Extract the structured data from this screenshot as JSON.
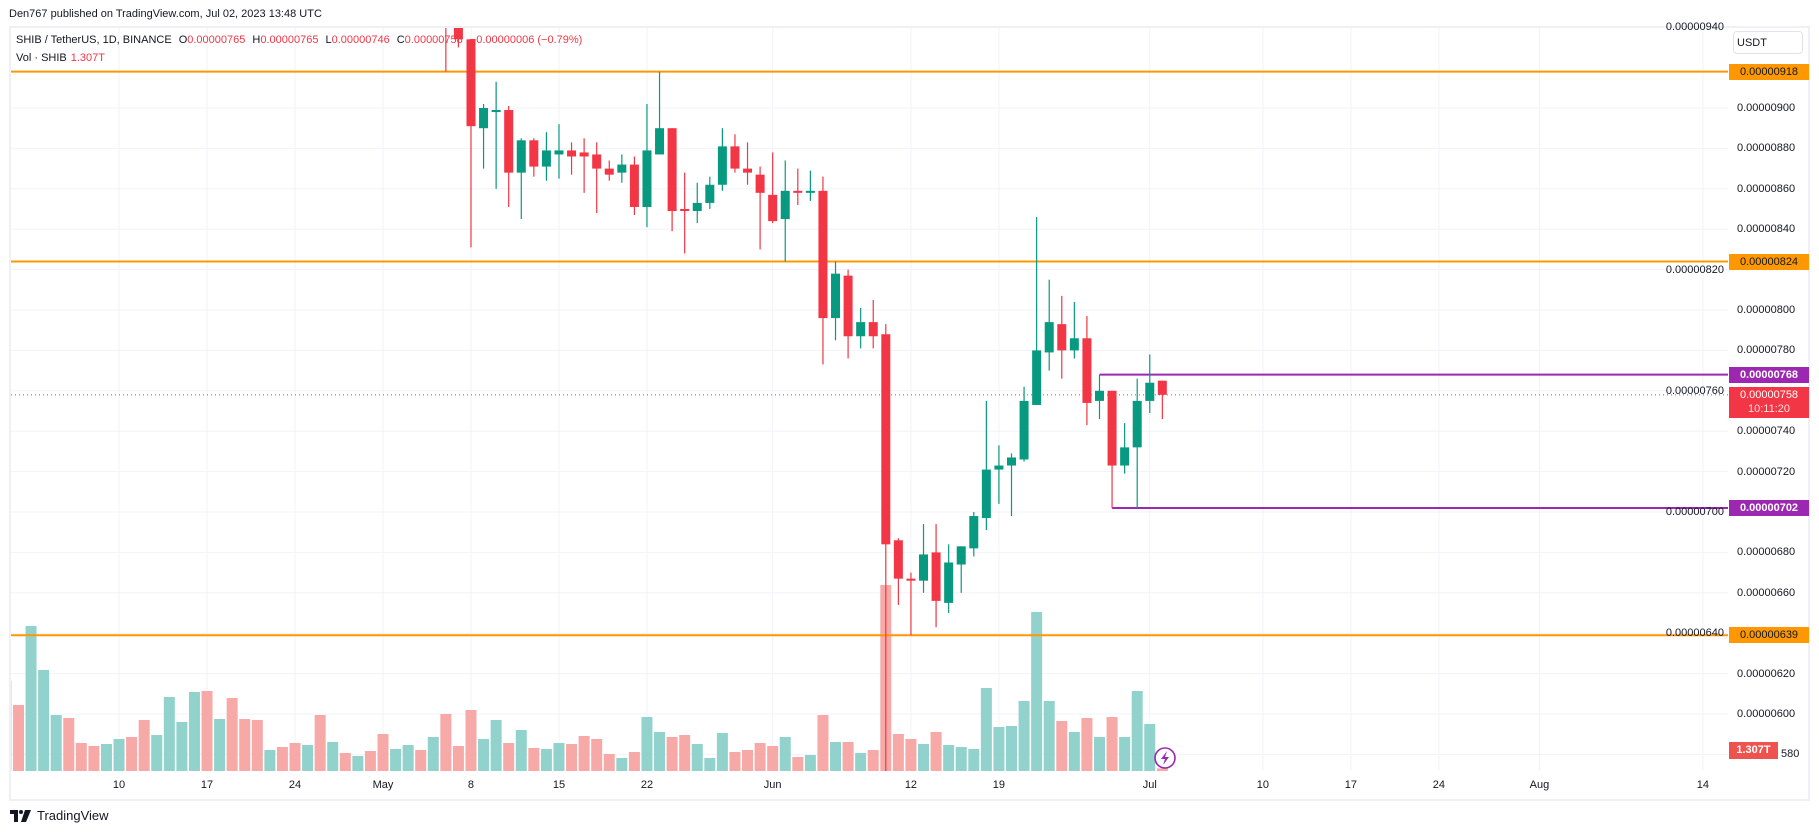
{
  "publish_line": "Den767 published on TradingView.com, Jul 02, 2023 13:48 UTC",
  "legend": {
    "symbol": "SHIB / TetherUS, 1D, BINANCE",
    "o_label": "O",
    "o_value": "0.00000765",
    "h_label": "H",
    "h_value": "0.00000765",
    "l_label": "L",
    "l_value": "0.00000746",
    "c_label": "C",
    "c_value": "0.00000758",
    "change": "−0.00000006 (−0.79%)",
    "vol_label": "Vol · SHIB",
    "vol_value": "1.307T"
  },
  "currency_button": "USDT",
  "current_price_tag": {
    "price": "0.00000758",
    "countdown": "10:11:20"
  },
  "volume_tag": "1.307T",
  "branding": "TradingView",
  "icons": {
    "alert": "lightning-icon",
    "logo": "tradingview-logo"
  },
  "colors": {
    "up": "#089981",
    "down": "#f23645",
    "vol_up": "#92d2cc",
    "vol_down": "#f7a9a7",
    "support": "#ff9800",
    "range": "#9c27b0",
    "grid": "#f0f3fa"
  },
  "chart_data": {
    "type": "candlestick",
    "title": "",
    "symbol": "SHIB / TetherUS",
    "interval": "1D",
    "ylim": [
      5.8e-06,
      9.4e-06
    ],
    "grid": true,
    "price_ticks": [
      {
        "value": 9.4e-06,
        "label": "0.00000940"
      },
      {
        "value": 9e-06,
        "label": "0.00000900"
      },
      {
        "value": 8.8e-06,
        "label": "0.00000880"
      },
      {
        "value": 8.6e-06,
        "label": "0.00000860"
      },
      {
        "value": 8.4e-06,
        "label": "0.00000840"
      },
      {
        "value": 8.2e-06,
        "label": "0.00000820"
      },
      {
        "value": 8e-06,
        "label": "0.00000800"
      },
      {
        "value": 7.8e-06,
        "label": "0.00000780"
      },
      {
        "value": 7.6e-06,
        "label": "0.00000760"
      },
      {
        "value": 7.4e-06,
        "label": "0.00000740"
      },
      {
        "value": 7.2e-06,
        "label": "0.00000720"
      },
      {
        "value": 7e-06,
        "label": "0.00000700"
      },
      {
        "value": 6.8e-06,
        "label": "0.00000680"
      },
      {
        "value": 6.6e-06,
        "label": "0.00000660"
      },
      {
        "value": 6.4e-06,
        "label": "0.00000640"
      },
      {
        "value": 6.2e-06,
        "label": "0.00000620"
      },
      {
        "value": 6e-06,
        "label": "0.00000600"
      },
      {
        "value": 5.8e-06,
        "label": "580"
      }
    ],
    "time_ticks": [
      {
        "label": "10",
        "date": "2023-04-10"
      },
      {
        "label": "17",
        "date": "2023-04-17"
      },
      {
        "label": "24",
        "date": "2023-04-24"
      },
      {
        "label": "May",
        "date": "2023-05-01"
      },
      {
        "label": "8",
        "date": "2023-05-08"
      },
      {
        "label": "15",
        "date": "2023-05-15"
      },
      {
        "label": "22",
        "date": "2023-05-22"
      },
      {
        "label": "Jun",
        "date": "2023-06-01"
      },
      {
        "label": "12",
        "date": "2023-06-12"
      },
      {
        "label": "19",
        "date": "2023-06-19"
      },
      {
        "label": "Jul",
        "date": "2023-07-01"
      },
      {
        "label": "10",
        "date": "2023-07-10"
      },
      {
        "label": "17",
        "date": "2023-07-17"
      },
      {
        "label": "24",
        "date": "2023-07-24"
      },
      {
        "label": "Aug",
        "date": "2023-08-01"
      },
      {
        "label": "14",
        "date": "2023-08-14"
      }
    ],
    "levels": [
      {
        "value": 9.18e-06,
        "label": "0.00000918",
        "style": "orange"
      },
      {
        "value": 8.24e-06,
        "label": "0.00000824",
        "style": "orange"
      },
      {
        "value": 6.39e-06,
        "label": "0.00000639",
        "style": "orange"
      },
      {
        "value": 7.68e-06,
        "label": "0.00000768",
        "style": "purple",
        "from": "2023-06-27"
      },
      {
        "value": 7.02e-06,
        "label": "0.00000702",
        "style": "purple",
        "from": "2023-06-28"
      }
    ],
    "current_price": 7.58e-06,
    "candles": [
      {
        "date": "2023-05-06",
        "o": 9.66e-06,
        "h": 9.75e-06,
        "l": 9.18e-06,
        "c": 9.46e-06
      },
      {
        "date": "2023-05-07",
        "o": 9.46e-06,
        "h": 9.5e-06,
        "l": 9.3e-06,
        "c": 9.34e-06
      },
      {
        "date": "2023-05-08",
        "o": 9.34e-06,
        "h": 9.34e-06,
        "l": 8.31e-06,
        "c": 8.91e-06
      },
      {
        "date": "2023-05-09",
        "o": 8.9e-06,
        "h": 9.02e-06,
        "l": 8.7e-06,
        "c": 9e-06
      },
      {
        "date": "2023-05-10",
        "o": 8.98e-06,
        "h": 9.13e-06,
        "l": 8.6e-06,
        "c": 8.99e-06
      },
      {
        "date": "2023-05-11",
        "o": 8.99e-06,
        "h": 9.01e-06,
        "l": 8.51e-06,
        "c": 8.68e-06
      },
      {
        "date": "2023-05-12",
        "o": 8.68e-06,
        "h": 8.85e-06,
        "l": 8.45e-06,
        "c": 8.84e-06
      },
      {
        "date": "2023-05-13",
        "o": 8.84e-06,
        "h": 8.85e-06,
        "l": 8.66e-06,
        "c": 8.71e-06
      },
      {
        "date": "2023-05-14",
        "o": 8.71e-06,
        "h": 8.88e-06,
        "l": 8.64e-06,
        "c": 8.79e-06
      },
      {
        "date": "2023-05-15",
        "o": 8.77e-06,
        "h": 8.92e-06,
        "l": 8.65e-06,
        "c": 8.79e-06
      },
      {
        "date": "2023-05-16",
        "o": 8.79e-06,
        "h": 8.83e-06,
        "l": 8.67e-06,
        "c": 8.76e-06
      },
      {
        "date": "2023-05-17",
        "o": 8.78e-06,
        "h": 8.85e-06,
        "l": 8.58e-06,
        "c": 8.76e-06
      },
      {
        "date": "2023-05-18",
        "o": 8.77e-06,
        "h": 8.83e-06,
        "l": 8.48e-06,
        "c": 8.7e-06
      },
      {
        "date": "2023-05-19",
        "o": 8.7e-06,
        "h": 8.74e-06,
        "l": 8.64e-06,
        "c": 8.67e-06
      },
      {
        "date": "2023-05-20",
        "o": 8.68e-06,
        "h": 8.77e-06,
        "l": 8.63e-06,
        "c": 8.72e-06
      },
      {
        "date": "2023-05-21",
        "o": 8.72e-06,
        "h": 8.76e-06,
        "l": 8.47e-06,
        "c": 8.51e-06
      },
      {
        "date": "2023-05-22",
        "o": 8.51e-06,
        "h": 9.02e-06,
        "l": 8.41e-06,
        "c": 8.79e-06
      },
      {
        "date": "2023-05-23",
        "o": 8.77e-06,
        "h": 9.18e-06,
        "l": 8.77e-06,
        "c": 8.9e-06
      },
      {
        "date": "2023-05-24",
        "o": 8.9e-06,
        "h": 8.9e-06,
        "l": 8.39e-06,
        "c": 8.49e-06
      },
      {
        "date": "2023-05-25",
        "o": 8.5e-06,
        "h": 8.68e-06,
        "l": 8.28e-06,
        "c": 8.49e-06
      },
      {
        "date": "2023-05-26",
        "o": 8.49e-06,
        "h": 8.63e-06,
        "l": 8.43e-06,
        "c": 8.53e-06
      },
      {
        "date": "2023-05-27",
        "o": 8.53e-06,
        "h": 8.66e-06,
        "l": 8.5e-06,
        "c": 8.62e-06
      },
      {
        "date": "2023-05-28",
        "o": 8.62e-06,
        "h": 8.9e-06,
        "l": 8.59e-06,
        "c": 8.81e-06
      },
      {
        "date": "2023-05-29",
        "o": 8.81e-06,
        "h": 8.87e-06,
        "l": 8.68e-06,
        "c": 8.7e-06
      },
      {
        "date": "2023-05-30",
        "o": 8.7e-06,
        "h": 8.83e-06,
        "l": 8.62e-06,
        "c": 8.68e-06
      },
      {
        "date": "2023-05-31",
        "o": 8.67e-06,
        "h": 8.71e-06,
        "l": 8.3e-06,
        "c": 8.58e-06
      },
      {
        "date": "2023-06-01",
        "o": 8.57e-06,
        "h": 8.78e-06,
        "l": 8.43e-06,
        "c": 8.44e-06
      },
      {
        "date": "2023-06-02",
        "o": 8.45e-06,
        "h": 8.74e-06,
        "l": 8.24e-06,
        "c": 8.59e-06
      },
      {
        "date": "2023-06-03",
        "o": 8.59e-06,
        "h": 8.7e-06,
        "l": 8.52e-06,
        "c": 8.58e-06
      },
      {
        "date": "2023-06-04",
        "o": 8.58e-06,
        "h": 8.69e-06,
        "l": 8.54e-06,
        "c": 8.59e-06
      },
      {
        "date": "2023-06-05",
        "o": 8.59e-06,
        "h": 8.66e-06,
        "l": 7.73e-06,
        "c": 7.96e-06
      },
      {
        "date": "2023-06-06",
        "o": 7.96e-06,
        "h": 8.24e-06,
        "l": 7.85e-06,
        "c": 8.18e-06
      },
      {
        "date": "2023-06-07",
        "o": 8.17e-06,
        "h": 8.2e-06,
        "l": 7.76e-06,
        "c": 7.87e-06
      },
      {
        "date": "2023-06-08",
        "o": 7.87e-06,
        "h": 8.01e-06,
        "l": 7.81e-06,
        "c": 7.94e-06
      },
      {
        "date": "2023-06-09",
        "o": 7.94e-06,
        "h": 8.05e-06,
        "l": 7.81e-06,
        "c": 7.87e-06
      },
      {
        "date": "2023-06-10",
        "o": 7.88e-06,
        "h": 7.93e-06,
        "l": 5.5e-06,
        "c": 6.84e-06
      },
      {
        "date": "2023-06-11",
        "o": 6.86e-06,
        "h": 6.87e-06,
        "l": 6.54e-06,
        "c": 6.67e-06
      },
      {
        "date": "2023-06-12",
        "o": 6.67e-06,
        "h": 6.7e-06,
        "l": 6.39e-06,
        "c": 6.66e-06
      },
      {
        "date": "2023-06-13",
        "o": 6.66e-06,
        "h": 6.94e-06,
        "l": 6.6e-06,
        "c": 6.79e-06
      },
      {
        "date": "2023-06-14",
        "o": 6.8e-06,
        "h": 6.94e-06,
        "l": 6.43e-06,
        "c": 6.56e-06
      },
      {
        "date": "2023-06-15",
        "o": 6.55e-06,
        "h": 6.84e-06,
        "l": 6.5e-06,
        "c": 6.75e-06
      },
      {
        "date": "2023-06-16",
        "o": 6.74e-06,
        "h": 6.83e-06,
        "l": 6.6e-06,
        "c": 6.83e-06
      },
      {
        "date": "2023-06-17",
        "o": 6.82e-06,
        "h": 7e-06,
        "l": 6.78e-06,
        "c": 6.98e-06
      },
      {
        "date": "2023-06-18",
        "o": 6.97e-06,
        "h": 7.55e-06,
        "l": 6.91e-06,
        "c": 7.21e-06
      },
      {
        "date": "2023-06-19",
        "o": 7.21e-06,
        "h": 7.33e-06,
        "l": 7.04e-06,
        "c": 7.23e-06
      },
      {
        "date": "2023-06-20",
        "o": 7.23e-06,
        "h": 7.29e-06,
        "l": 6.98e-06,
        "c": 7.27e-06
      },
      {
        "date": "2023-06-21",
        "o": 7.26e-06,
        "h": 7.62e-06,
        "l": 7.25e-06,
        "c": 7.55e-06
      },
      {
        "date": "2023-06-22",
        "o": 7.53e-06,
        "h": 8.46e-06,
        "l": 7.53e-06,
        "c": 7.8e-06
      },
      {
        "date": "2023-06-23",
        "o": 7.79e-06,
        "h": 8.15e-06,
        "l": 7.7e-06,
        "c": 7.94e-06
      },
      {
        "date": "2023-06-24",
        "o": 7.93e-06,
        "h": 8.07e-06,
        "l": 7.66e-06,
        "c": 7.8e-06
      },
      {
        "date": "2023-06-25",
        "o": 7.8e-06,
        "h": 8.04e-06,
        "l": 7.76e-06,
        "c": 7.86e-06
      },
      {
        "date": "2023-06-26",
        "o": 7.86e-06,
        "h": 7.97e-06,
        "l": 7.43e-06,
        "c": 7.54e-06
      },
      {
        "date": "2023-06-27",
        "o": 7.55e-06,
        "h": 7.68e-06,
        "l": 7.46e-06,
        "c": 7.6e-06
      },
      {
        "date": "2023-06-28",
        "o": 7.6e-06,
        "h": 7.6e-06,
        "l": 7.02e-06,
        "c": 7.23e-06
      },
      {
        "date": "2023-06-29",
        "o": 7.23e-06,
        "h": 7.44e-06,
        "l": 7.19e-06,
        "c": 7.32e-06
      },
      {
        "date": "2023-06-30",
        "o": 7.32e-06,
        "h": 7.66e-06,
        "l": 7.02e-06,
        "c": 7.55e-06
      },
      {
        "date": "2023-07-01",
        "o": 7.55e-06,
        "h": 7.78e-06,
        "l": 7.49e-06,
        "c": 7.64e-06
      },
      {
        "date": "2023-07-02",
        "o": 7.65e-06,
        "h": 7.65e-06,
        "l": 7.46e-06,
        "c": 7.58e-06
      }
    ],
    "volume_unit": "T",
    "volume_start_date": "2023-04-01",
    "volume": [
      45,
      33,
      72.5,
      50.5,
      28,
      26.5,
      14,
      12.5,
      13.5,
      16,
      17,
      25.5,
      18,
      37,
      24.5,
      39.5,
      40,
      26,
      36.5,
      26,
      25.5,
      10.5,
      12,
      14,
      13,
      28,
      14.5,
      9,
      7.5,
      10,
      18.5,
      11,
      13,
      10.5,
      17,
      28.5,
      12.5,
      30.5,
      16,
      25.5,
      14,
      20.5,
      11.5,
      11,
      14,
      13.5,
      17.5,
      16,
      8.5,
      6.5,
      9.5,
      27,
      19.5,
      17,
      18,
      13.5,
      6.5,
      19,
      9.5,
      10.5,
      14,
      12.5,
      17,
      7,
      8,
      28,
      14.5,
      14.5,
      9,
      10.5,
      93,
      18.5,
      16,
      13.5,
      19.5,
      13,
      12,
      11,
      41.5,
      22,
      22.5,
      35,
      79.5,
      35,
      25,
      19.5,
      26.5,
      17,
      27,
      17,
      40,
      23.5,
      1.307
    ],
    "volume_direction": "gr g g g r r r g g r r g g g g r g r r r g r r g r g r g r r g g r g r r r g g r g r g g r r r r g r g g r r g g g r r r r g r g r g r g r r r r g r g g g g g g g g g r g r g r g g g r"
  }
}
